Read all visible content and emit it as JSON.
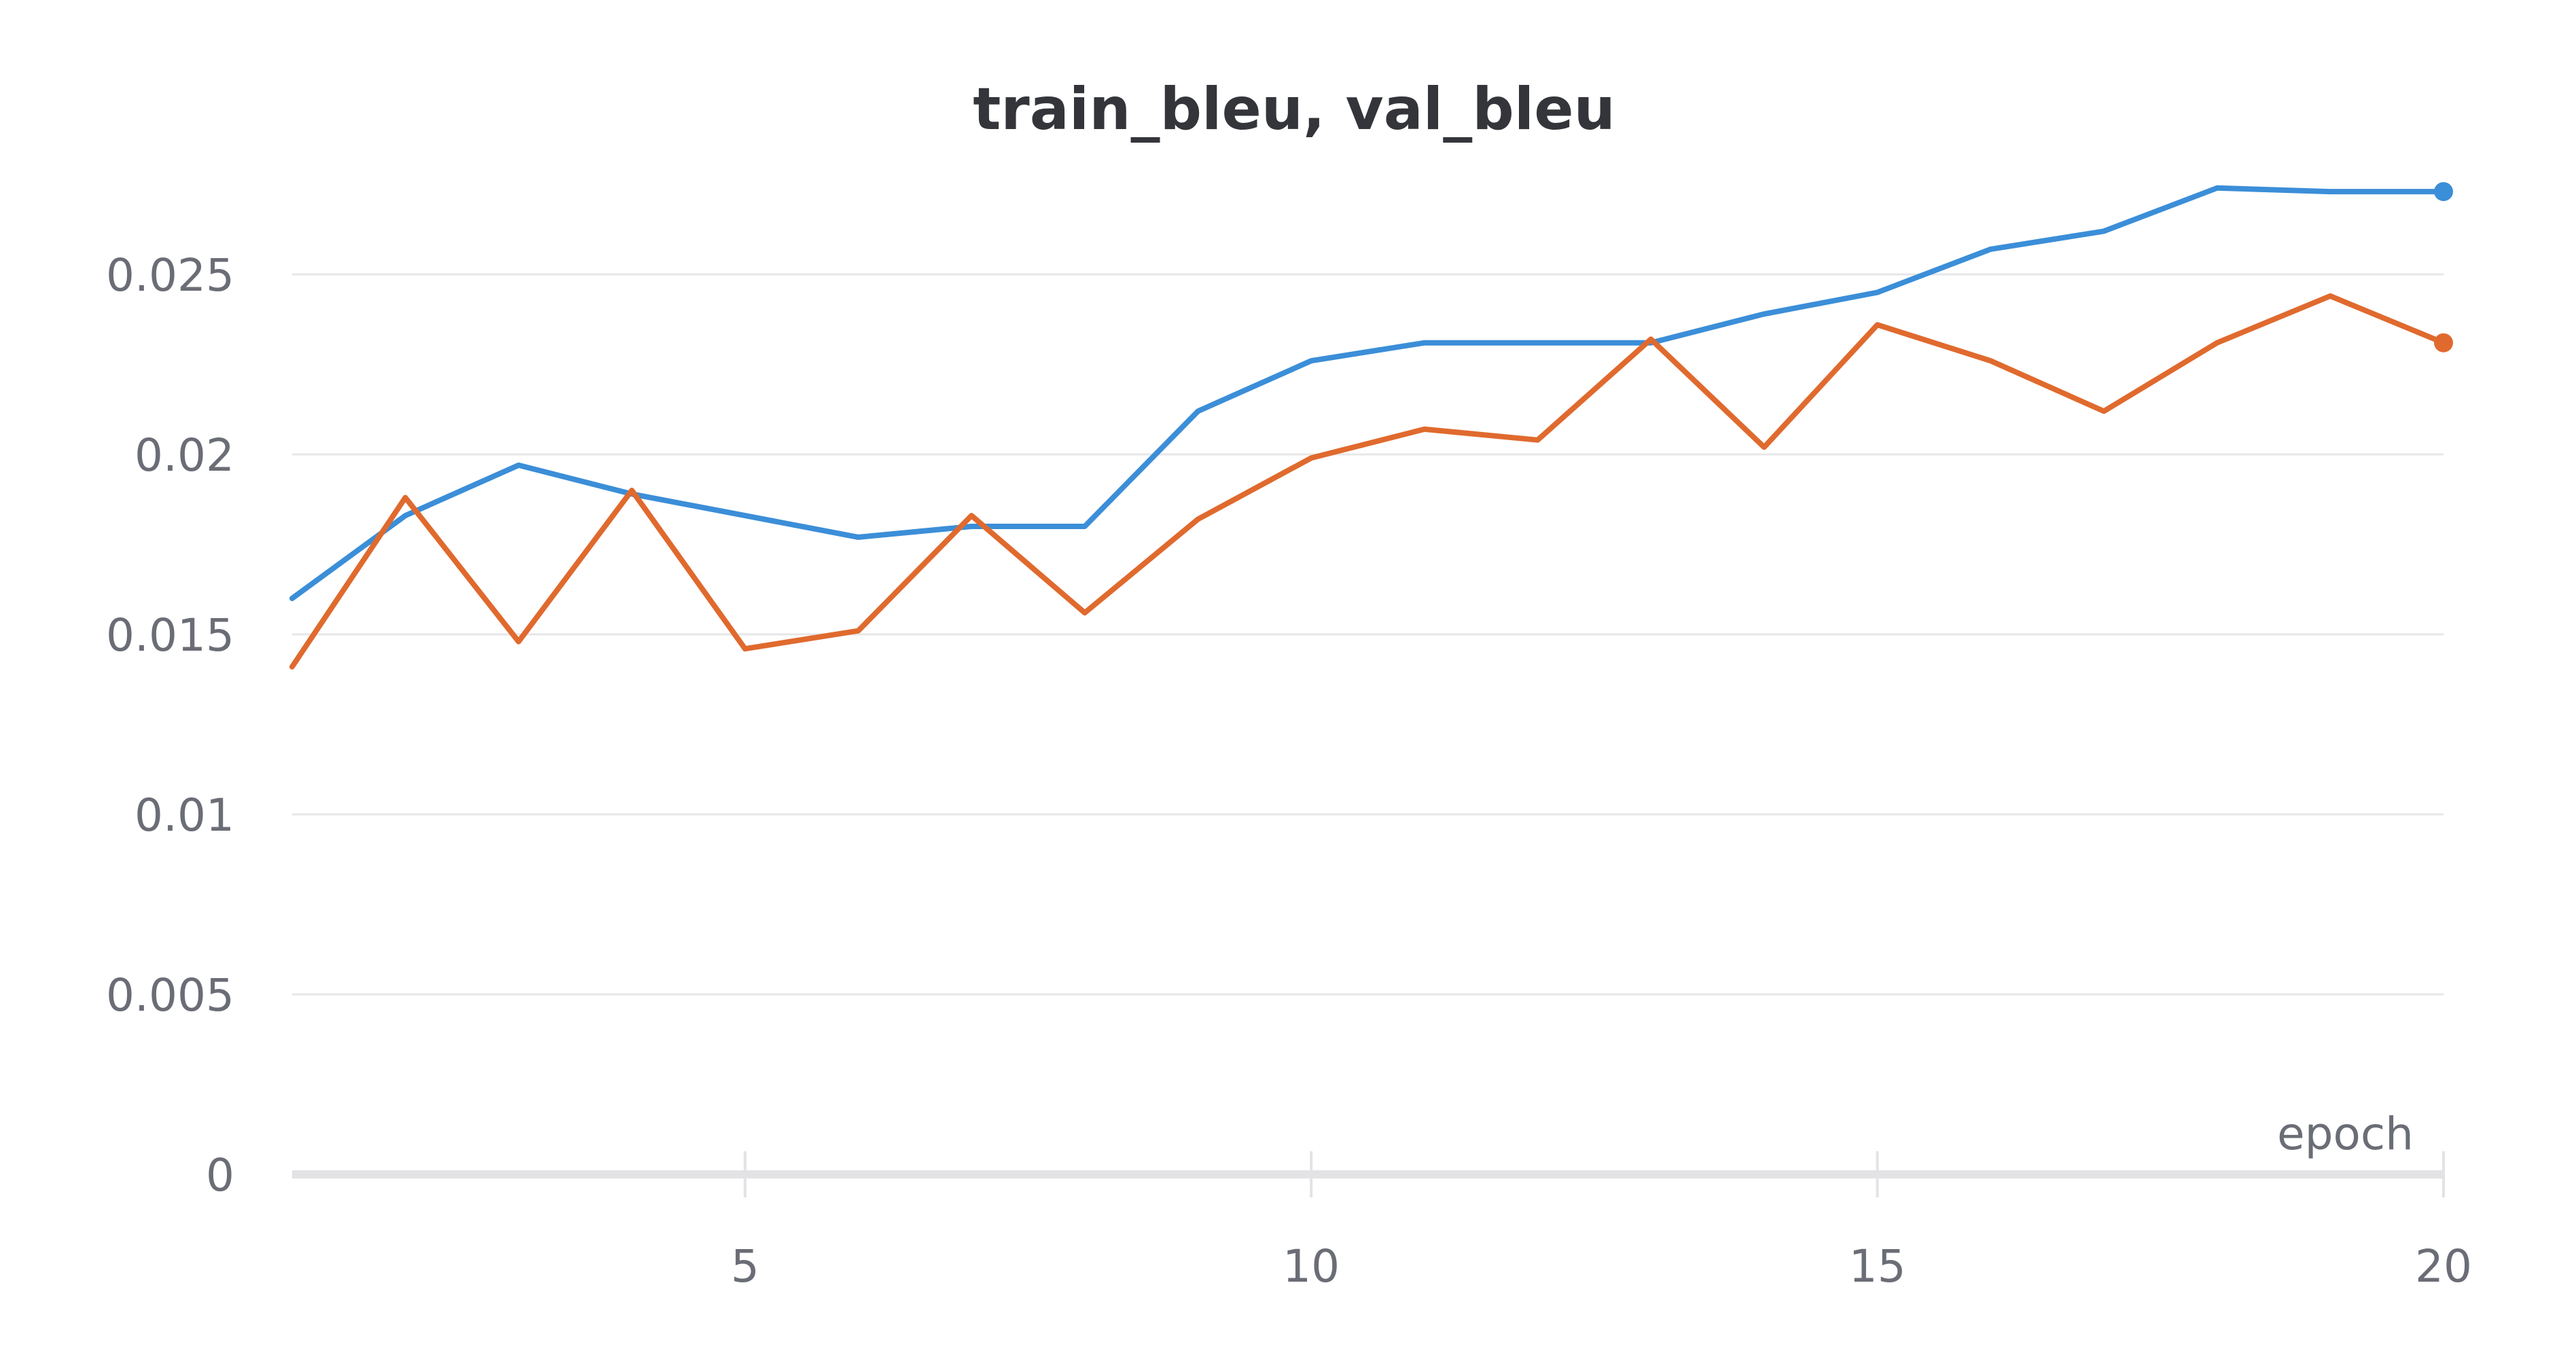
{
  "chart_data": {
    "type": "line",
    "title": "train_bleu, val_bleu",
    "xlabel": "epoch",
    "ylabel": "",
    "xlim": [
      1,
      20
    ],
    "ylim": [
      0,
      0.028
    ],
    "x_ticks": [
      5,
      10,
      15,
      20
    ],
    "x_tick_labels": [
      "5",
      "10",
      "15",
      "20"
    ],
    "y_ticks": [
      0,
      0.005,
      0.01,
      0.015,
      0.02,
      0.025
    ],
    "y_tick_labels": [
      "0",
      "0.005",
      "0.01",
      "0.015",
      "0.02",
      "0.025"
    ],
    "grid": "horizontal",
    "series": [
      {
        "color": "#3b8ed8",
        "x": [
          1,
          2,
          3,
          4,
          5,
          6,
          7,
          8,
          9,
          10,
          11,
          12,
          13,
          14,
          15,
          16,
          17,
          18,
          19,
          20
        ],
        "values": [
          0.016,
          0.0183,
          0.0197,
          0.0189,
          0.0183,
          0.0177,
          0.018,
          0.018,
          0.0212,
          0.0226,
          0.0231,
          0.0231,
          0.0231,
          0.0239,
          0.0245,
          0.0257,
          0.0262,
          0.0274,
          0.0273,
          0.0273
        ]
      },
      {
        "color": "#e06a2e",
        "x": [
          1,
          2,
          3,
          4,
          5,
          6,
          7,
          8,
          9,
          10,
          11,
          12,
          13,
          14,
          15,
          16,
          17,
          18,
          19,
          20
        ],
        "values": [
          0.0141,
          0.0188,
          0.0148,
          0.019,
          0.0146,
          0.0151,
          0.0183,
          0.0156,
          0.0182,
          0.0199,
          0.0207,
          0.0204,
          0.0232,
          0.0202,
          0.0236,
          0.0226,
          0.0212,
          0.0231,
          0.0244,
          0.0231
        ]
      }
    ]
  }
}
